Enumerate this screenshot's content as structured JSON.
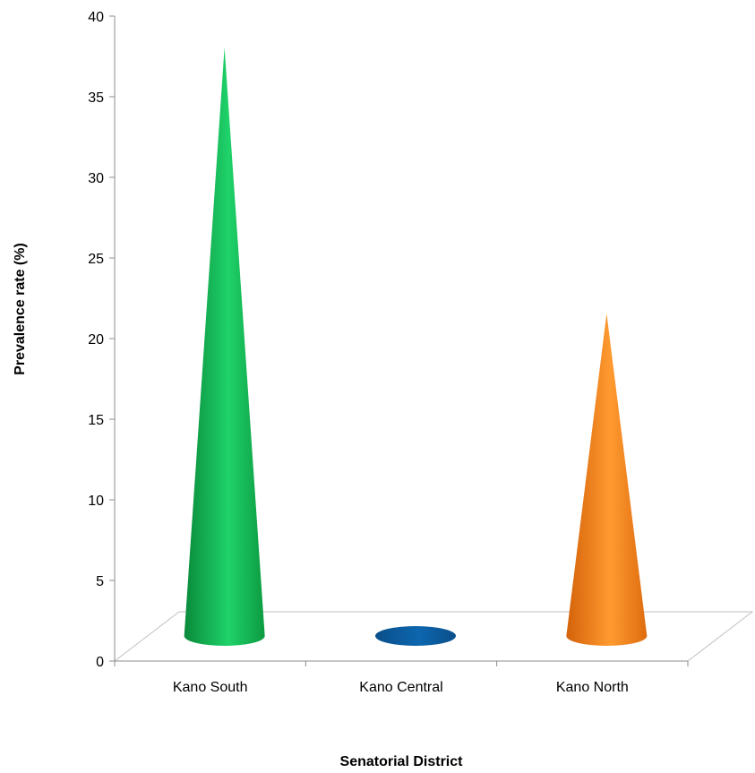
{
  "chart_data": {
    "type": "bar",
    "style": "3d-cone",
    "xlabel": "Senatorial District",
    "ylabel": "Prevalence rate (%)",
    "ylim": [
      0,
      40
    ],
    "yticks": [
      "0",
      "5",
      "10",
      "15",
      "20",
      "25",
      "30",
      "35",
      "40"
    ],
    "categories": [
      "Kano South",
      "Kano Central",
      "Kano North"
    ],
    "values": [
      37,
      0,
      20.5
    ],
    "colors": [
      "#14b84e",
      "#0b5a9c",
      "#f07d14"
    ],
    "grid": false,
    "legend": "none"
  }
}
